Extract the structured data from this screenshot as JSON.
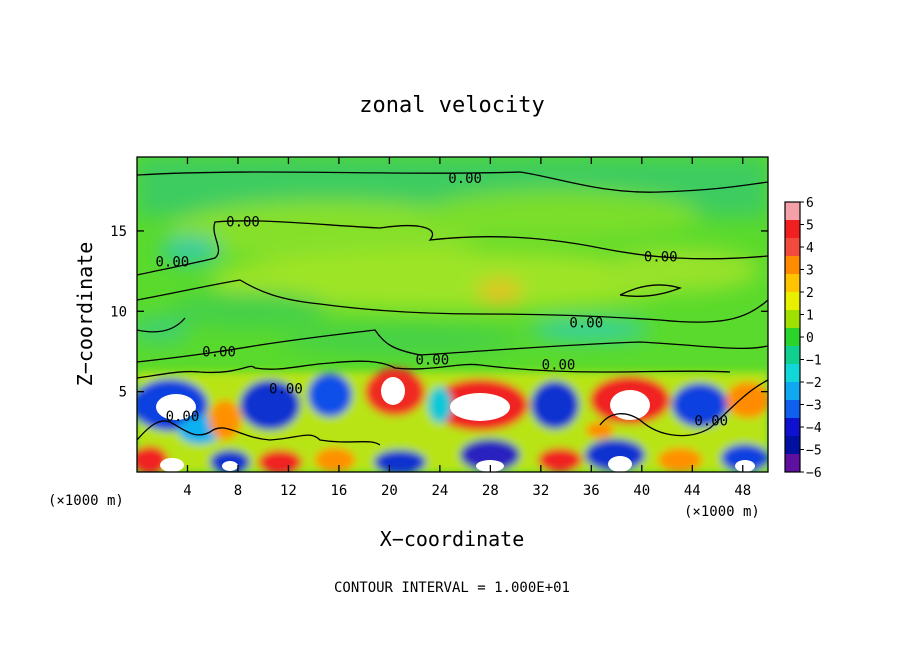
{
  "chart_data": {
    "type": "heatmap",
    "title": "zonal velocity",
    "xlabel": "X−coordinate",
    "ylabel": "Z−coordinate",
    "x_unit_left": "(×1000 m)",
    "x_unit_right": "(×1000 m)",
    "footer": "CONTOUR INTERVAL = 1.000E+01",
    "xlim": [
      0,
      50
    ],
    "ylim": [
      0,
      19.6
    ],
    "x_ticks": [
      4,
      8,
      12,
      16,
      20,
      24,
      28,
      32,
      36,
      40,
      44,
      48
    ],
    "y_ticks": [
      5,
      10,
      15
    ],
    "colorbar": {
      "levels": [
        "6",
        "5",
        "4",
        "3",
        "2",
        "1",
        "0",
        "−1",
        "−2",
        "−3",
        "−4",
        "−5",
        "−6"
      ],
      "colors": [
        "#f4a0a8",
        "#f02020",
        "#f24a3c",
        "#ff8c00",
        "#ffc400",
        "#e8f000",
        "#a0e000",
        "#2ad42a",
        "#10d090",
        "#10d8d8",
        "#10a8f0",
        "#1060f0",
        "#1010d0",
        "#0010a0",
        "#6010a0"
      ]
    },
    "contour_labels": [
      {
        "text": "0.00",
        "x": 26,
        "y": 18.3
      },
      {
        "text": "0.00",
        "x": 8.4,
        "y": 15.6
      },
      {
        "text": "0.00",
        "x": 2.8,
        "y": 13.1
      },
      {
        "text": "0.00",
        "x": 41.5,
        "y": 13.4
      },
      {
        "text": "0.00",
        "x": 35.6,
        "y": 9.3
      },
      {
        "text": "0.00",
        "x": 6.5,
        "y": 7.5
      },
      {
        "text": "0.00",
        "x": 23.4,
        "y": 7.0
      },
      {
        "text": "0.00",
        "x": 33.4,
        "y": 6.7
      },
      {
        "text": "0.00",
        "x": 11.8,
        "y": 5.2
      },
      {
        "text": "0.00",
        "x": 3.6,
        "y": 3.5
      },
      {
        "text": "0.00",
        "x": 45.5,
        "y": 3.2
      }
    ]
  }
}
